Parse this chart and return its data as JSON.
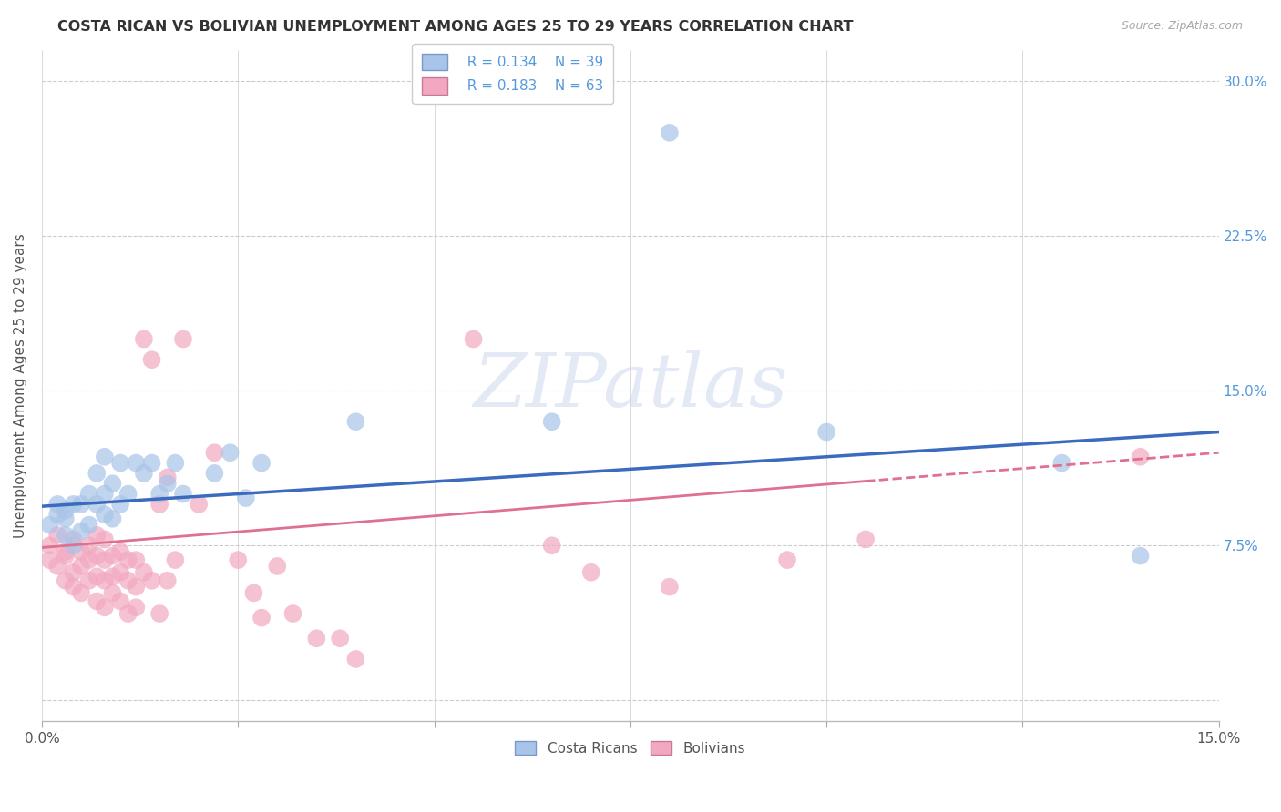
{
  "title": "COSTA RICAN VS BOLIVIAN UNEMPLOYMENT AMONG AGES 25 TO 29 YEARS CORRELATION CHART",
  "source": "Source: ZipAtlas.com",
  "ylabel": "Unemployment Among Ages 25 to 29 years",
  "xlim": [
    0.0,
    0.15
  ],
  "ylim": [
    -0.01,
    0.315
  ],
  "grid_color": "#cccccc",
  "background_color": "#ffffff",
  "costa_ricans_color": "#a8c4e8",
  "bolivians_color": "#f2a8c0",
  "trend_costa_color": "#3a6bbf",
  "trend_bolivia_color": "#e07090",
  "tick_label_color": "#5599dd",
  "legend_r_costa": "R = 0.134",
  "legend_n_costa": "N = 39",
  "legend_r_bolivia": "R = 0.183",
  "legend_n_bolivia": "N = 63",
  "cr_trend_x0": 0.0,
  "cr_trend_y0": 0.094,
  "cr_trend_x1": 0.15,
  "cr_trend_y1": 0.13,
  "bo_trend_x0": 0.0,
  "bo_trend_y0": 0.074,
  "bo_trend_x1": 0.15,
  "bo_trend_y1": 0.12,
  "bo_dashed_split": 0.105,
  "costa_ricans_x": [
    0.001,
    0.002,
    0.002,
    0.003,
    0.003,
    0.003,
    0.004,
    0.004,
    0.005,
    0.005,
    0.006,
    0.006,
    0.007,
    0.007,
    0.008,
    0.008,
    0.008,
    0.009,
    0.009,
    0.01,
    0.01,
    0.011,
    0.012,
    0.013,
    0.014,
    0.015,
    0.016,
    0.017,
    0.018,
    0.022,
    0.024,
    0.026,
    0.028,
    0.04,
    0.065,
    0.08,
    0.1,
    0.13,
    0.14
  ],
  "costa_ricans_y": [
    0.085,
    0.09,
    0.095,
    0.08,
    0.088,
    0.092,
    0.075,
    0.095,
    0.082,
    0.095,
    0.085,
    0.1,
    0.11,
    0.095,
    0.09,
    0.1,
    0.118,
    0.088,
    0.105,
    0.095,
    0.115,
    0.1,
    0.115,
    0.11,
    0.115,
    0.1,
    0.105,
    0.115,
    0.1,
    0.11,
    0.12,
    0.098,
    0.115,
    0.135,
    0.135,
    0.275,
    0.13,
    0.115,
    0.07
  ],
  "bolivians_x": [
    0.001,
    0.001,
    0.002,
    0.002,
    0.003,
    0.003,
    0.003,
    0.004,
    0.004,
    0.004,
    0.005,
    0.005,
    0.005,
    0.006,
    0.006,
    0.006,
    0.007,
    0.007,
    0.007,
    0.007,
    0.008,
    0.008,
    0.008,
    0.008,
    0.009,
    0.009,
    0.009,
    0.01,
    0.01,
    0.01,
    0.011,
    0.011,
    0.011,
    0.012,
    0.012,
    0.012,
    0.013,
    0.013,
    0.014,
    0.014,
    0.015,
    0.015,
    0.016,
    0.016,
    0.017,
    0.018,
    0.02,
    0.022,
    0.025,
    0.027,
    0.028,
    0.03,
    0.032,
    0.035,
    0.038,
    0.04,
    0.055,
    0.065,
    0.07,
    0.08,
    0.095,
    0.105,
    0.14
  ],
  "bolivians_y": [
    0.075,
    0.068,
    0.08,
    0.065,
    0.07,
    0.058,
    0.072,
    0.062,
    0.078,
    0.055,
    0.065,
    0.072,
    0.052,
    0.058,
    0.068,
    0.075,
    0.06,
    0.07,
    0.08,
    0.048,
    0.058,
    0.068,
    0.078,
    0.045,
    0.06,
    0.07,
    0.052,
    0.062,
    0.072,
    0.048,
    0.058,
    0.068,
    0.042,
    0.055,
    0.068,
    0.045,
    0.175,
    0.062,
    0.165,
    0.058,
    0.095,
    0.042,
    0.108,
    0.058,
    0.068,
    0.175,
    0.095,
    0.12,
    0.068,
    0.052,
    0.04,
    0.065,
    0.042,
    0.03,
    0.03,
    0.02,
    0.175,
    0.075,
    0.062,
    0.055,
    0.068,
    0.078,
    0.118
  ]
}
